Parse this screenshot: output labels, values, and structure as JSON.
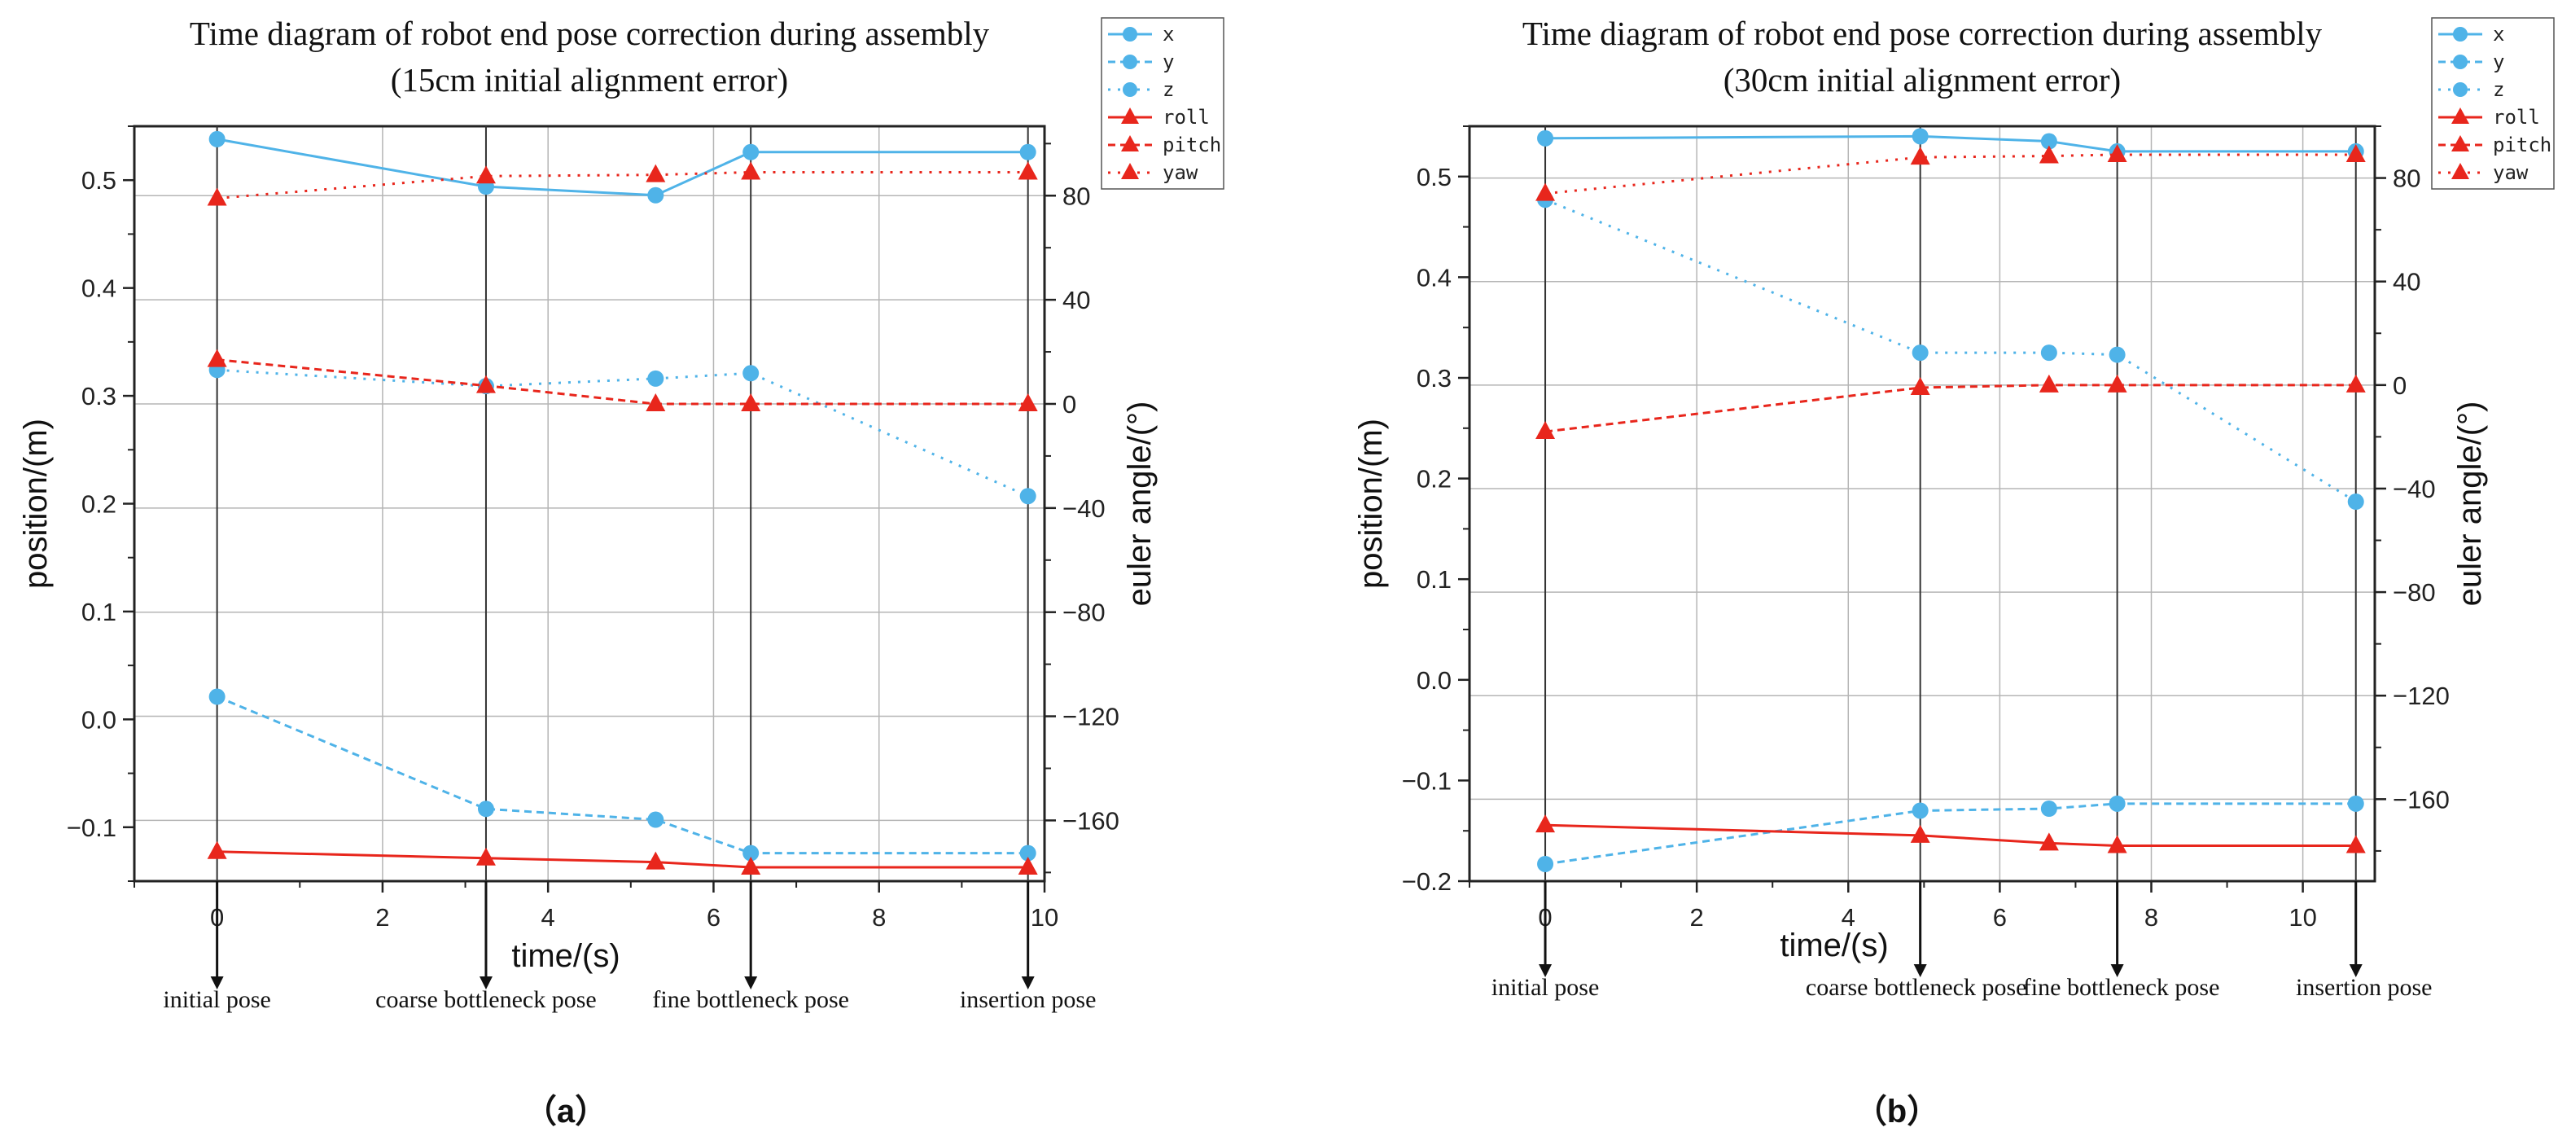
{
  "chart_data": [
    {
      "type": "line",
      "panel_label": "（a）",
      "title_lines": [
        "Time diagram of robot end pose correction during assembly",
        "(15cm initial alignment error)"
      ],
      "xlabel": "time/(s)",
      "ylabel": "position/(m)",
      "y2label": "euler angle/(°)",
      "xlim": [
        -1,
        10
      ],
      "ylim": [
        -0.15,
        0.55
      ],
      "y2lim": [
        -183.33,
        106.67
      ],
      "xticks": [
        0,
        2,
        4,
        6,
        8,
        10
      ],
      "xtick_labels": [
        "0",
        "2",
        "4",
        "6",
        "8",
        "10"
      ],
      "yticks": [
        -0.1,
        0.0,
        0.1,
        0.2,
        0.3,
        0.4,
        0.5
      ],
      "ytick_labels": [
        "−0.1",
        "0.0",
        "0.1",
        "0.2",
        "0.3",
        "0.4",
        "0.5"
      ],
      "y2ticks": [
        -160,
        -120,
        -80,
        -40,
        0,
        40,
        80
      ],
      "y2tick_labels": [
        "−160",
        "−120",
        "−80",
        "−40",
        "0",
        "40",
        "80"
      ],
      "grid": true,
      "legend_position": "top-right",
      "series": [
        {
          "name": "x",
          "axis": "left",
          "color": "#4fb3e8",
          "dash": "solid",
          "marker": "circle",
          "x": [
            0,
            3.25,
            5.3,
            6.45,
            9.8
          ],
          "values": [
            0.538,
            0.494,
            0.486,
            0.526,
            0.526
          ]
        },
        {
          "name": "y",
          "axis": "left",
          "color": "#4fb3e8",
          "dash": "dashed",
          "marker": "circle",
          "x": [
            0,
            3.25,
            5.3,
            6.45,
            9.8
          ],
          "values": [
            0.021,
            -0.083,
            -0.093,
            -0.124,
            -0.124
          ]
        },
        {
          "name": "z",
          "axis": "left",
          "color": "#4fb3e8",
          "dash": "dotted",
          "marker": "circle",
          "x": [
            0,
            3.25,
            5.3,
            6.45,
            9.8
          ],
          "values": [
            0.324,
            0.309,
            0.316,
            0.321,
            0.207
          ]
        },
        {
          "name": "roll",
          "axis": "right",
          "color": "#e8261c",
          "dash": "solid",
          "marker": "triangle",
          "x": [
            0,
            3.25,
            5.3,
            6.45,
            9.8
          ],
          "values": [
            -172,
            -174.5,
            -176,
            -178,
            -178
          ]
        },
        {
          "name": "pitch",
          "axis": "right",
          "color": "#e8261c",
          "dash": "dashed",
          "marker": "triangle",
          "x": [
            0,
            3.25,
            5.3,
            6.45,
            9.8
          ],
          "values": [
            17,
            7,
            0,
            0,
            0
          ]
        },
        {
          "name": "yaw",
          "axis": "right",
          "color": "#e8261c",
          "dash": "dotted",
          "marker": "triangle",
          "x": [
            0,
            3.25,
            5.3,
            6.45,
            9.8
          ],
          "values": [
            79,
            87.5,
            88,
            89,
            89
          ]
        }
      ],
      "annotations": [
        {
          "x": 0,
          "label": "initial pose"
        },
        {
          "x": 3.25,
          "label": "coarse bottleneck pose"
        },
        {
          "x": 6.45,
          "label": "fine bottleneck pose"
        },
        {
          "x": 9.8,
          "label": "insertion pose"
        }
      ]
    },
    {
      "type": "line",
      "panel_label": "（b）",
      "title_lines": [
        "Time diagram of robot end pose correction during assembly",
        "(30cm initial alignment error)"
      ],
      "xlabel": "time/(s)",
      "ylabel": "position/(m)",
      "y2label": "euler angle/(°)",
      "xlim": [
        -1,
        10.95
      ],
      "ylim": [
        -0.2,
        0.55
      ],
      "y2lim": [
        -191.67,
        100.0
      ],
      "xticks": [
        0,
        2,
        4,
        6,
        8,
        10
      ],
      "xtick_labels": [
        "0",
        "2",
        "4",
        "6",
        "8",
        "10"
      ],
      "yticks": [
        -0.2,
        -0.1,
        0.0,
        0.1,
        0.2,
        0.3,
        0.4,
        0.5
      ],
      "ytick_labels": [
        "−0.2",
        "−0.1",
        "0.0",
        "0.1",
        "0.2",
        "0.3",
        "0.4",
        "0.5"
      ],
      "y2ticks": [
        -160,
        -120,
        -80,
        -40,
        0,
        40,
        80
      ],
      "y2tick_labels": [
        "−160",
        "−120",
        "−80",
        "−40",
        "0",
        "40",
        "80"
      ],
      "grid": true,
      "legend_position": "top-right",
      "series": [
        {
          "name": "x",
          "axis": "left",
          "color": "#4fb3e8",
          "dash": "solid",
          "marker": "circle",
          "x": [
            0,
            4.95,
            6.65,
            7.55,
            10.7
          ],
          "values": [
            0.538,
            0.54,
            0.535,
            0.525,
            0.525
          ]
        },
        {
          "name": "y",
          "axis": "left",
          "color": "#4fb3e8",
          "dash": "dashed",
          "marker": "circle",
          "x": [
            0,
            4.95,
            6.65,
            7.55,
            10.7
          ],
          "values": [
            -0.183,
            -0.13,
            -0.128,
            -0.123,
            -0.123
          ]
        },
        {
          "name": "z",
          "axis": "left",
          "color": "#4fb3e8",
          "dash": "dotted",
          "marker": "circle",
          "x": [
            0,
            4.95,
            6.65,
            7.55,
            10.7
          ],
          "values": [
            0.477,
            0.325,
            0.325,
            0.323,
            0.177
          ]
        },
        {
          "name": "roll",
          "axis": "right",
          "color": "#e8261c",
          "dash": "solid",
          "marker": "triangle",
          "x": [
            0,
            4.95,
            6.65,
            7.55,
            10.7
          ],
          "values": [
            -170,
            -174,
            -177,
            -178,
            -178
          ]
        },
        {
          "name": "pitch",
          "axis": "right",
          "color": "#e8261c",
          "dash": "dashed",
          "marker": "triangle",
          "x": [
            0,
            4.95,
            6.65,
            7.55,
            10.7
          ],
          "values": [
            -18,
            -1,
            0,
            0,
            0
          ]
        },
        {
          "name": "yaw",
          "axis": "right",
          "color": "#e8261c",
          "dash": "dotted",
          "marker": "triangle",
          "x": [
            0,
            4.95,
            6.65,
            7.55,
            10.7
          ],
          "values": [
            74,
            88,
            88.5,
            89,
            89
          ]
        }
      ],
      "annotations": [
        {
          "x": 0,
          "label": "initial pose"
        },
        {
          "x": 4.95,
          "label": "coarse bottleneck pose"
        },
        {
          "x": 7.55,
          "label": "fine bottleneck pose"
        },
        {
          "x": 10.7,
          "label": "insertion pose"
        }
      ]
    }
  ]
}
